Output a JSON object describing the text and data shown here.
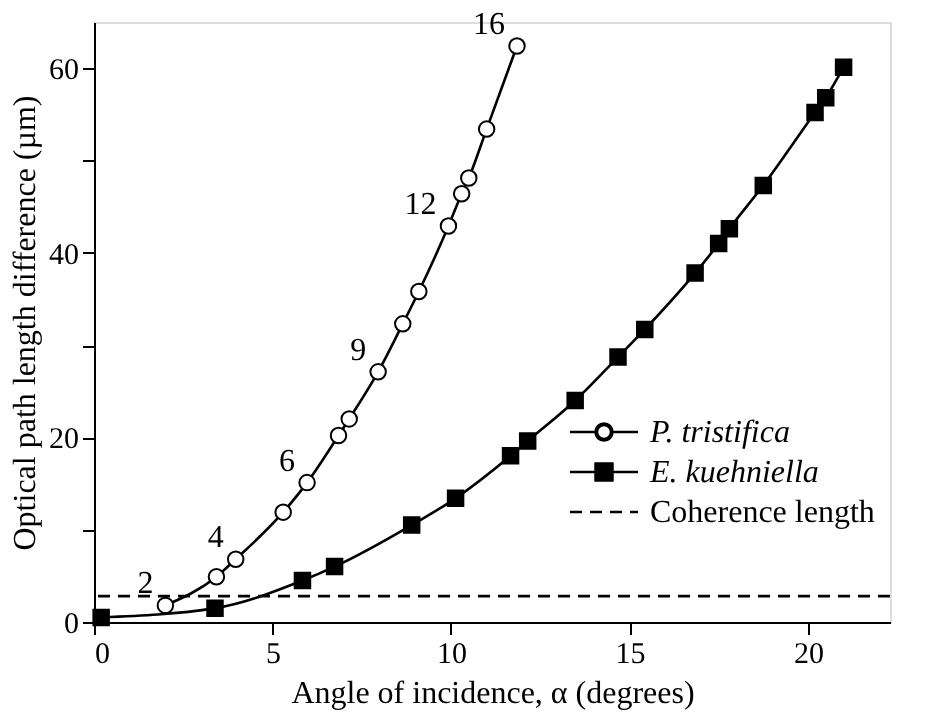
{
  "chart_data": {
    "type": "line",
    "xlabel": "Angle of incidence, α (degrees)",
    "ylabel": "Optical path length difference (µm)",
    "xlim": [
      0,
      22.3
    ],
    "xticks": [
      0,
      5,
      10,
      15,
      20
    ],
    "ylim": [
      0,
      65
    ],
    "yticks": [
      0,
      {
        "value": 10,
        "label": null
      },
      20,
      {
        "value": 30,
        "label": null
      },
      40,
      {
        "value": 50,
        "label": null
      },
      60
    ],
    "grid": false,
    "legend": "bottom right",
    "line_style": "solid",
    "series": [
      {
        "name": "P. tristifica",
        "color": "#000000",
        "marker": "circle",
        "x": [
          2.0,
          3.43,
          3.97,
          5.3,
          5.97,
          6.85,
          7.15,
          7.96,
          8.65,
          9.1,
          9.93,
          10.3,
          10.5,
          11.0,
          11.85
        ],
        "values": [
          1.8,
          4.9,
          6.8,
          11.9,
          15.1,
          20.2,
          22.0,
          27.1,
          32.3,
          35.8,
          42.9,
          46.4,
          48.1,
          53.4,
          62.4
        ]
      },
      {
        "name": "E. kuehniella",
        "color": "#000000",
        "marker": "square",
        "x": [
          0.2,
          3.39,
          5.84,
          6.74,
          8.9,
          10.13,
          11.67,
          12.15,
          13.48,
          14.68,
          15.43,
          16.84,
          17.5,
          17.8,
          18.75,
          20.2,
          20.5,
          21.0
        ],
        "values": [
          0.5,
          1.5,
          4.5,
          6.0,
          10.5,
          13.4,
          18.0,
          19.6,
          24.0,
          28.7,
          31.7,
          37.8,
          41.0,
          42.6,
          47.3,
          55.2,
          56.8,
          60.1
        ]
      }
    ],
    "ref_lines": [
      {
        "axis": "y",
        "value": 2.8,
        "label": "Coherence length",
        "color": "#000000",
        "line_style": "dashed"
      }
    ],
    "annotations": [
      {
        "text": "2",
        "x": 2.0,
        "y": 1.8
      },
      {
        "text": "4",
        "x": 3.97,
        "y": 6.8
      },
      {
        "text": "6",
        "x": 5.97,
        "y": 15.1
      },
      {
        "text": "9",
        "x": 7.96,
        "y": 27.1
      },
      {
        "text": "12",
        "x": 9.93,
        "y": 42.9
      },
      {
        "text": "16",
        "x": 11.85,
        "y": 62.4
      }
    ]
  }
}
